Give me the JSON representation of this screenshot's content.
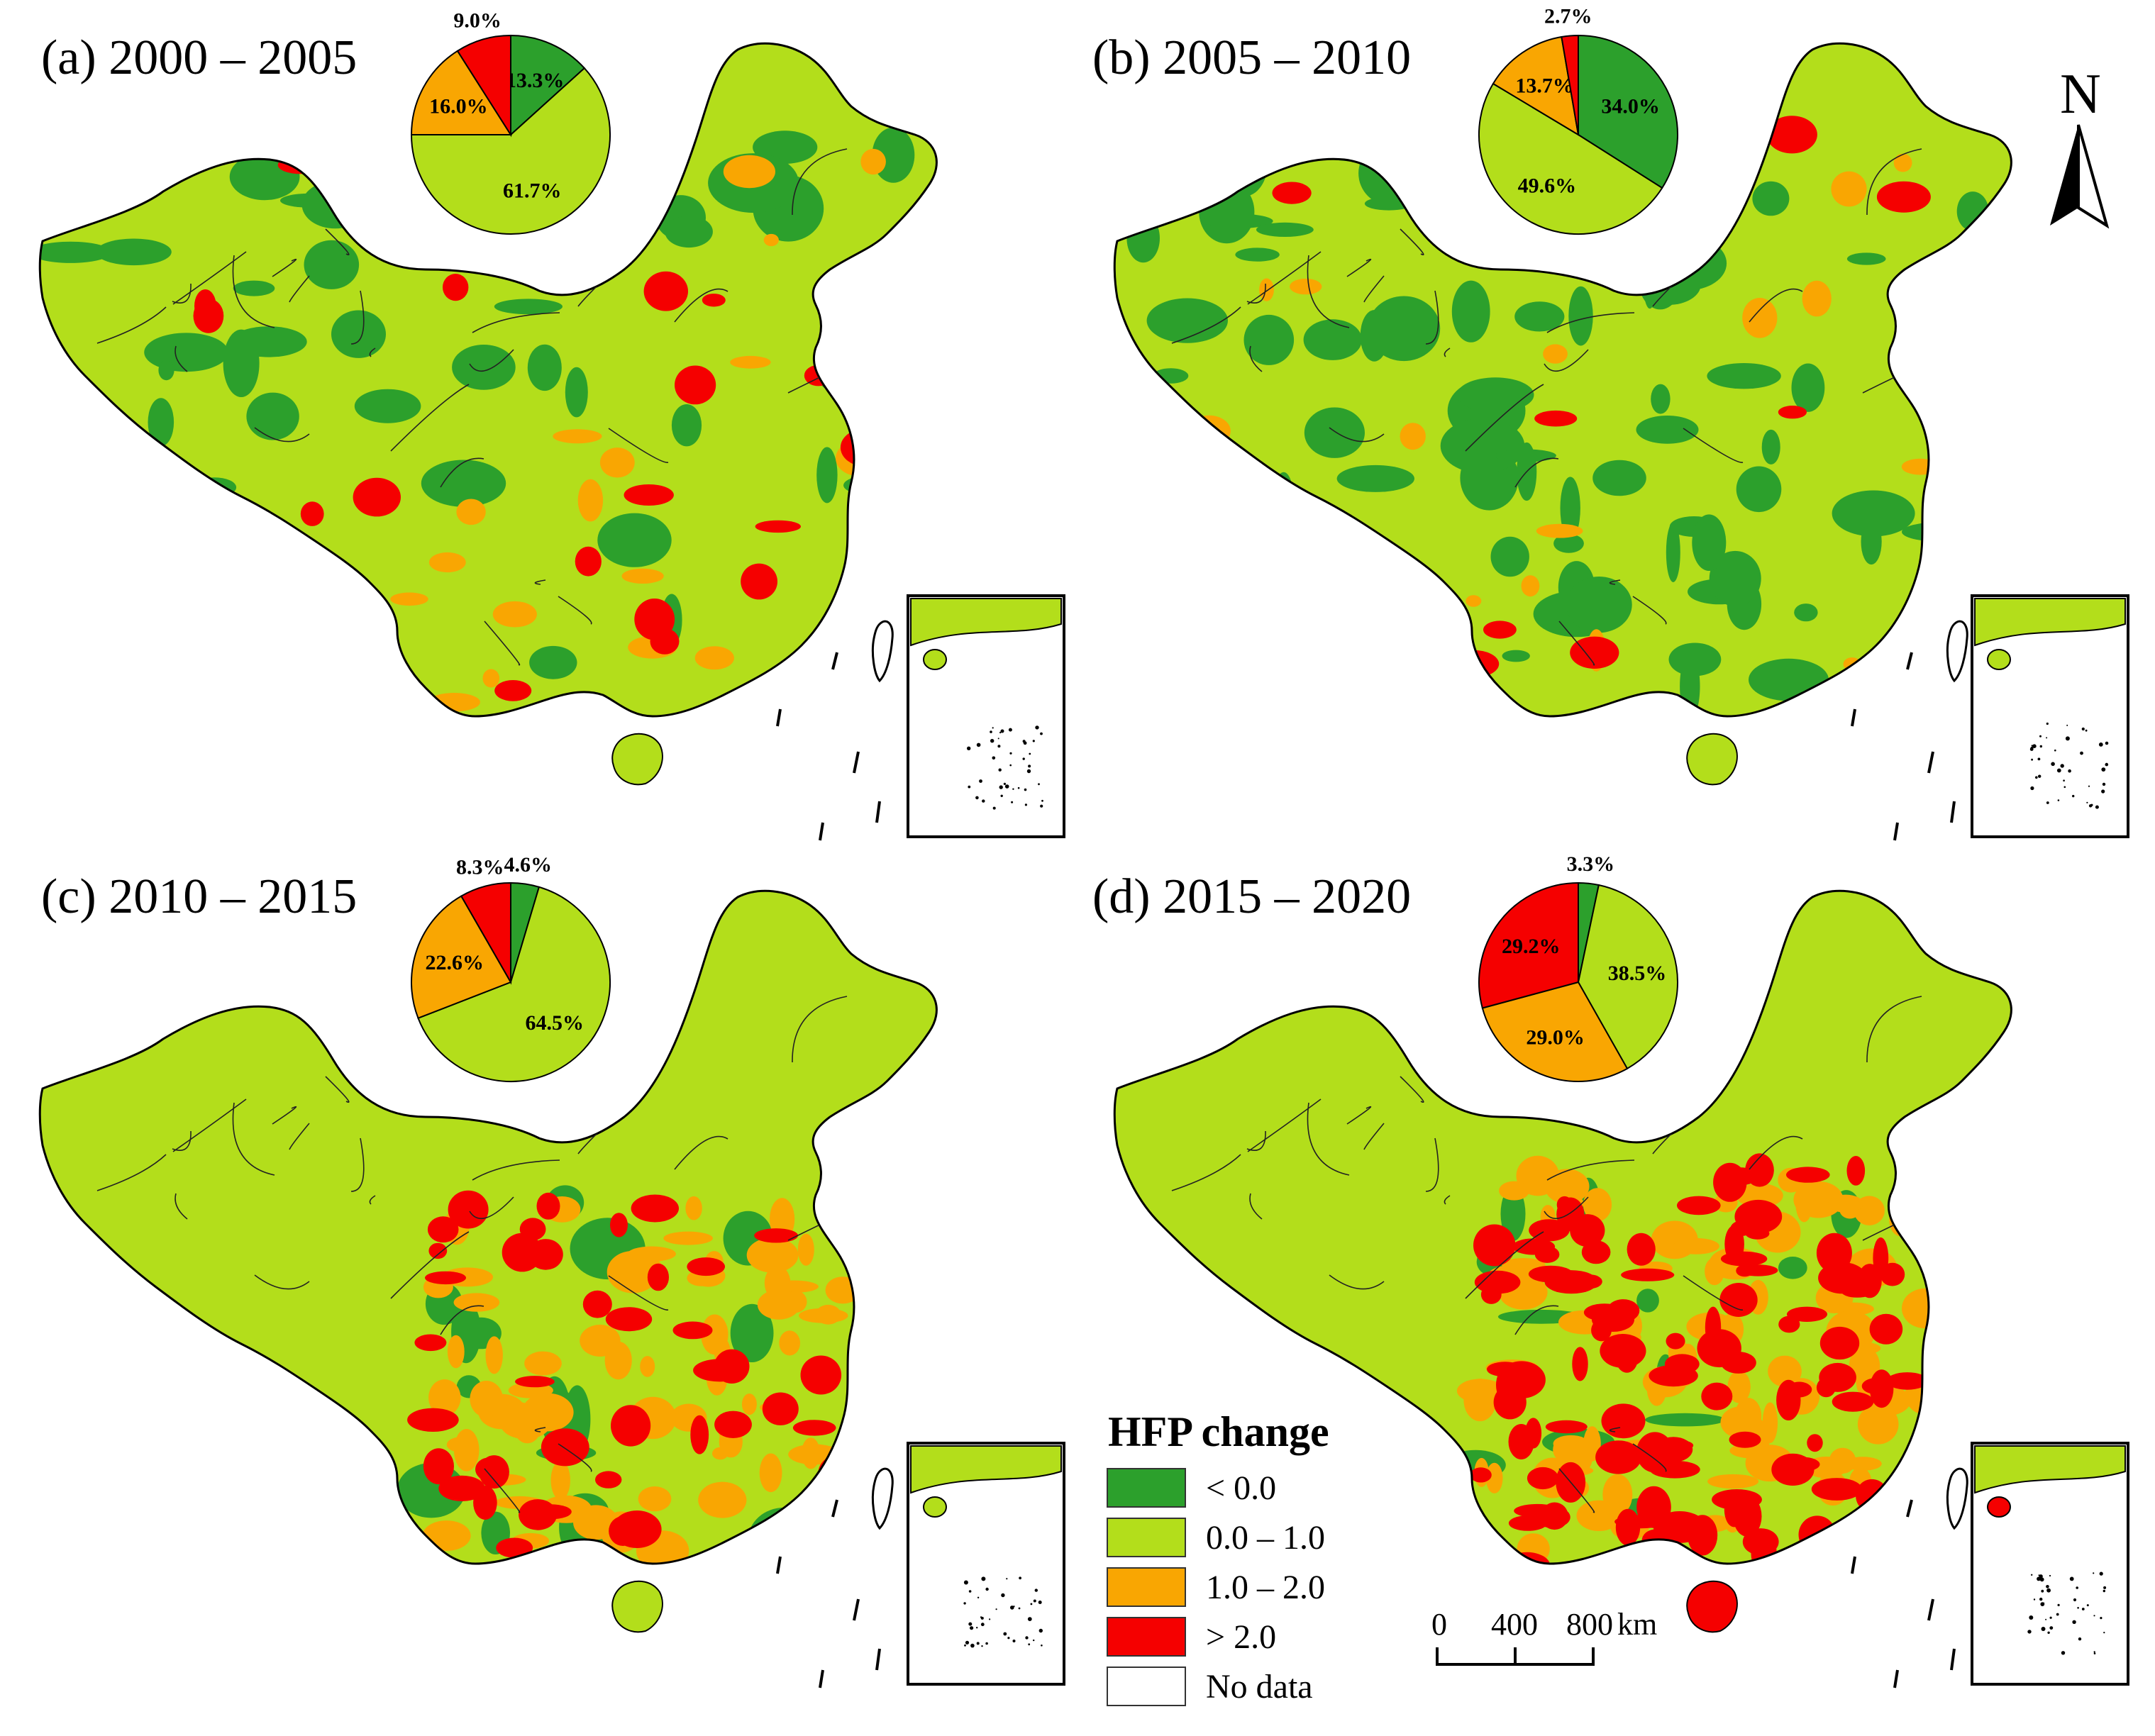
{
  "figure": {
    "legend": {
      "title": "HFP change",
      "items": [
        {
          "label": "< 0.0",
          "color": "#2ca02c"
        },
        {
          "label": "0.0 – 1.0",
          "color": "#b3de1b"
        },
        {
          "label": "1.0 – 2.0",
          "color": "#f9a602"
        },
        {
          "label": "> 2.0",
          "color": "#f50000"
        },
        {
          "label": "No data",
          "color": "#ffffff"
        }
      ]
    },
    "scale_bar": {
      "ticks": [
        "0",
        "400",
        "800"
      ],
      "unit": "km"
    },
    "north_arrow": {
      "label": "N"
    },
    "panels": [
      {
        "title": "(a) 2000 – 2005",
        "pie": [
          {
            "category": "< 0.0",
            "value": 13.3,
            "label": "13.3%"
          },
          {
            "category": "0.0 – 1.0",
            "value": 61.7,
            "label": "61.7%"
          },
          {
            "category": "1.0 – 2.0",
            "value": 16.0,
            "label": "16.0%"
          },
          {
            "category": "> 2.0",
            "value": 9.0,
            "label": "9.0%"
          }
        ],
        "base_fill": "#b3de1b"
      },
      {
        "title": "(b) 2005 – 2010",
        "pie": [
          {
            "category": "< 0.0",
            "value": 34.0,
            "label": "34.0%"
          },
          {
            "category": "0.0 – 1.0",
            "value": 49.6,
            "label": "49.6%"
          },
          {
            "category": "1.0 – 2.0",
            "value": 13.7,
            "label": "13.7%"
          },
          {
            "category": "> 2.0",
            "value": 2.7,
            "label": "2.7%"
          }
        ],
        "base_fill": "#b3de1b"
      },
      {
        "title": "(c) 2010 – 2015",
        "pie": [
          {
            "category": "< 0.0",
            "value": 4.6,
            "label": "4.6%"
          },
          {
            "category": "0.0 – 1.0",
            "value": 64.5,
            "label": "64.5%"
          },
          {
            "category": "1.0 – 2.0",
            "value": 22.6,
            "label": "22.6%"
          },
          {
            "category": "> 2.0",
            "value": 8.3,
            "label": "8.3%"
          }
        ],
        "base_fill": "#b3de1b"
      },
      {
        "title": "(d) 2015 – 2020",
        "pie": [
          {
            "category": "< 0.0",
            "value": 3.3,
            "label": "3.3%"
          },
          {
            "category": "0.0 – 1.0",
            "value": 38.5,
            "label": "38.5%"
          },
          {
            "category": "1.0 – 2.0",
            "value": 29.0,
            "label": "29.0%"
          },
          {
            "category": "> 2.0",
            "value": 29.2,
            "label": "29.2%"
          }
        ],
        "base_fill": "#b3de1b"
      }
    ]
  }
}
